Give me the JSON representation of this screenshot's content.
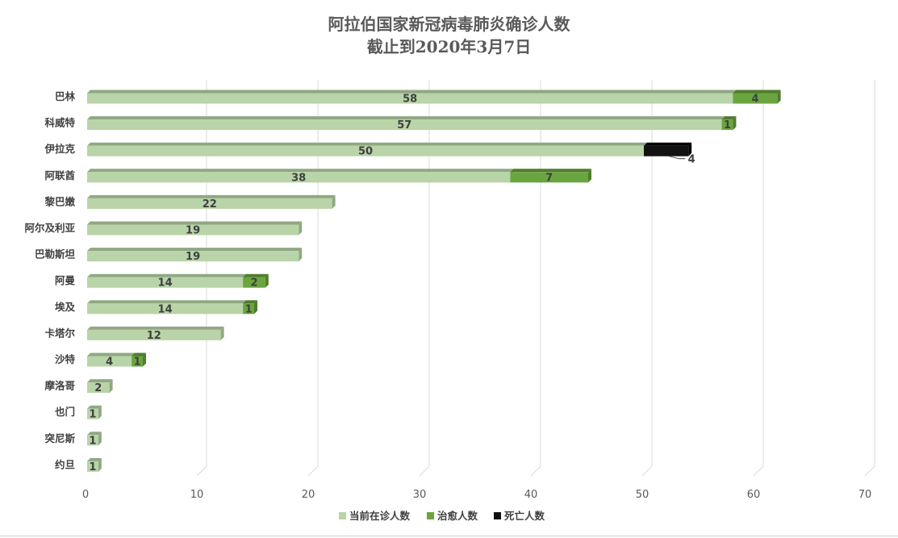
{
  "chart_data": {
    "type": "bar",
    "orientation": "horizontal",
    "stacked": true,
    "title": "阿拉伯国家新冠病毒肺炎确诊人数",
    "subtitle": "截止到2020年3月7日",
    "categories": [
      "巴林",
      "科威特",
      "伊拉克",
      "阿联酋",
      "黎巴嫩",
      "阿尔及利亚",
      "巴勒斯坦",
      "阿曼",
      "埃及",
      "卡塔尔",
      "沙特",
      "摩洛哥",
      "也门",
      "突尼斯",
      "约旦"
    ],
    "series": [
      {
        "name": "当前在诊人数",
        "color": "#b8d4a8",
        "top_color": "#8fa882",
        "values": [
          58,
          57,
          50,
          38,
          22,
          19,
          19,
          14,
          14,
          12,
          4,
          2,
          1,
          1,
          1
        ]
      },
      {
        "name": "治愈人数",
        "color": "#6aa53f",
        "top_color": "#4f7d2e",
        "values": [
          4,
          1,
          0,
          7,
          0,
          0,
          0,
          2,
          1,
          0,
          1,
          0,
          0,
          0,
          0
        ]
      },
      {
        "name": "死亡人数",
        "color": "#111111",
        "top_color": "#000000",
        "values": [
          0,
          0,
          4,
          0,
          0,
          0,
          0,
          0,
          0,
          0,
          0,
          0,
          0,
          0,
          0
        ]
      }
    ],
    "xlim": [
      0,
      70
    ],
    "xticks": [
      "0",
      "10",
      "20",
      "30",
      "40",
      "50",
      "60",
      "70"
    ],
    "grid": true,
    "legend_position": "bottom"
  }
}
